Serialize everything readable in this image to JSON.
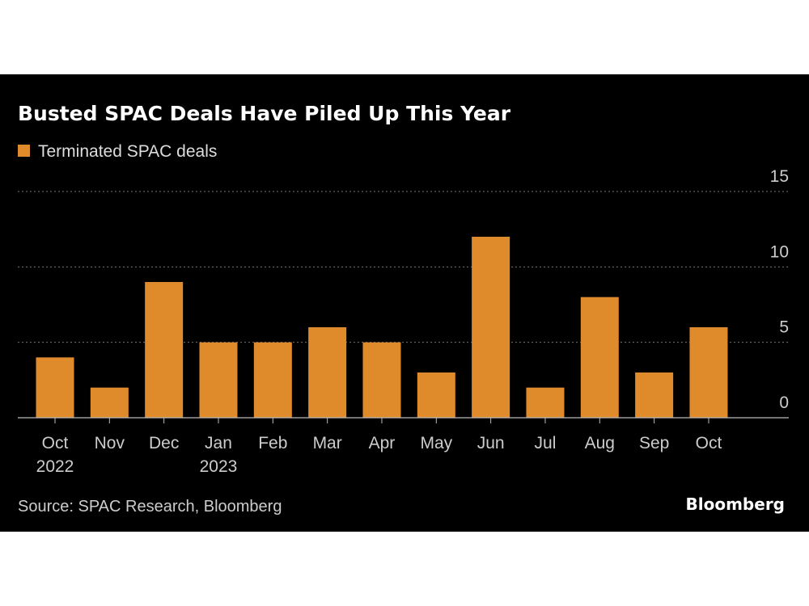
{
  "chart_data": {
    "type": "bar",
    "title": "Busted SPAC Deals Have Piled Up This Year",
    "legend": [
      "Terminated SPAC deals"
    ],
    "categories": [
      "Oct 2022",
      "Nov",
      "Dec",
      "Jan 2023",
      "Feb",
      "Mar",
      "Apr",
      "May",
      "Jun",
      "Jul",
      "Aug",
      "Sep",
      "Oct"
    ],
    "tick_labels": [
      [
        "Oct",
        "2022"
      ],
      [
        "Nov"
      ],
      [
        "Dec"
      ],
      [
        "Jan",
        "2023"
      ],
      [
        "Feb"
      ],
      [
        "Mar"
      ],
      [
        "Apr"
      ],
      [
        "May"
      ],
      [
        "Jun"
      ],
      [
        "Jul"
      ],
      [
        "Aug"
      ],
      [
        "Sep"
      ],
      [
        "Oct"
      ]
    ],
    "series": [
      {
        "name": "Terminated SPAC deals",
        "values": [
          4,
          2,
          9,
          5,
          5,
          6,
          5,
          3,
          12,
          2,
          8,
          3,
          6
        ],
        "color": "#e08b2b"
      }
    ],
    "ylim": [
      0,
      15
    ],
    "yticks": [
      0,
      5,
      10,
      15
    ],
    "grid": true,
    "legend_placement": "top-left",
    "xlabel": "",
    "ylabel": ""
  },
  "source": "Source: SPAC Research, Bloomberg",
  "logo": "Bloomberg"
}
